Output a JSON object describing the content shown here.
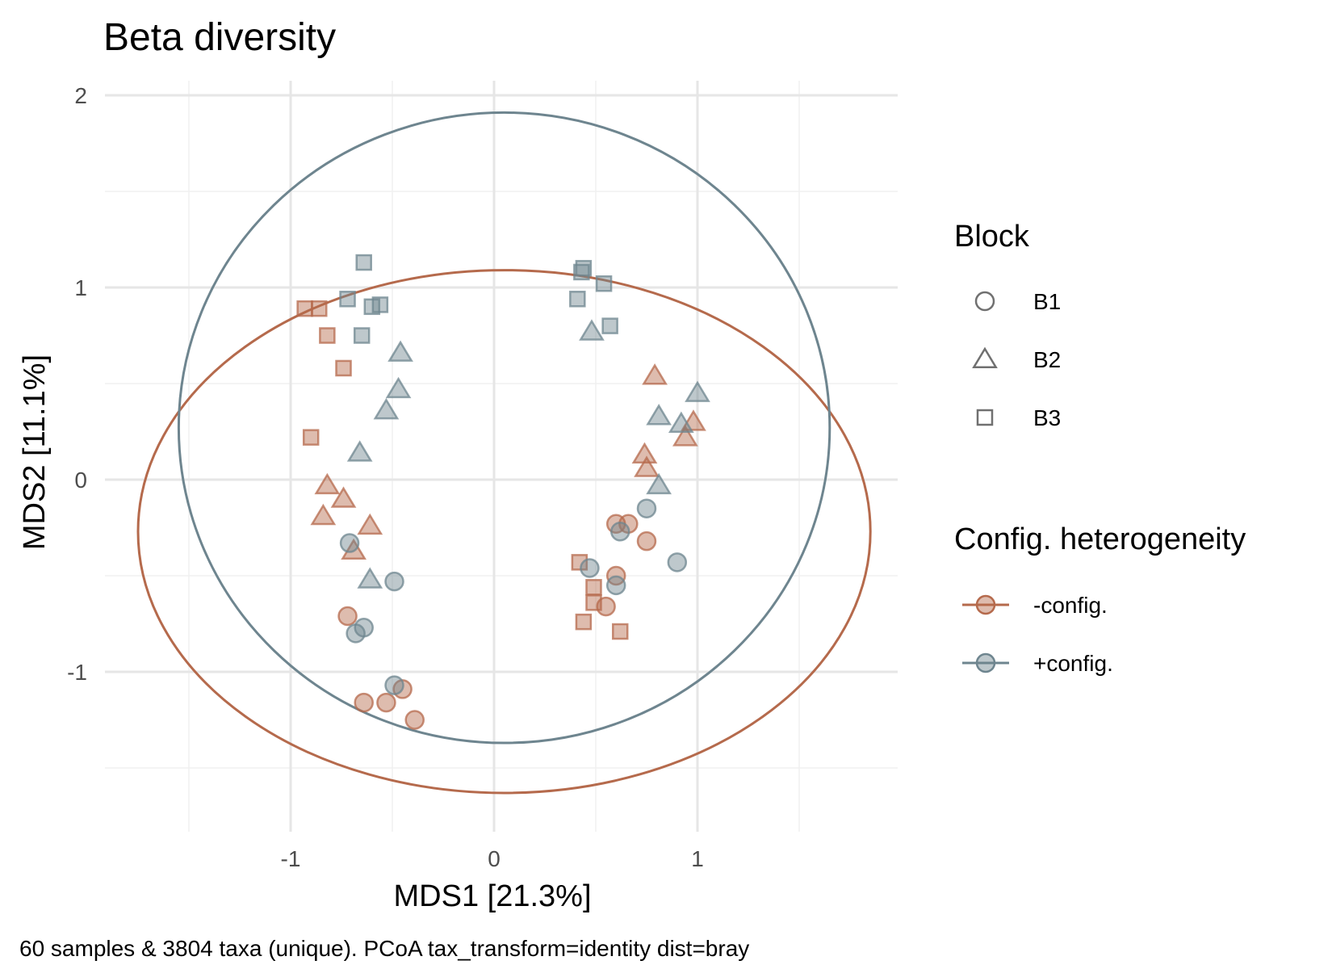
{
  "chart_data": {
    "type": "scatter",
    "title": "Beta diversity",
    "xlabel": "MDS1 [21.3%]",
    "ylabel": "MDS2 [11.1%]",
    "caption": "60 samples & 3804 taxa (unique). PCoA tax_transform=identity dist=bray",
    "xlim": [
      -1.9,
      2.0
    ],
    "ylim": [
      -1.8,
      2.05
    ],
    "x_ticks": [
      -1,
      0,
      1
    ],
    "x_tick_labels": [
      "-1",
      "0",
      "1"
    ],
    "y_ticks": [
      -1,
      0,
      1,
      2
    ],
    "y_tick_labels": [
      "-1",
      "0",
      "1",
      "2"
    ],
    "grid": true,
    "legend_position": "right",
    "shape_legend": {
      "title": "Block",
      "items": [
        {
          "label": "B1",
          "shape": "circle"
        },
        {
          "label": "B2",
          "shape": "triangle"
        },
        {
          "label": "B3",
          "shape": "square"
        }
      ]
    },
    "color_legend": {
      "title": "Config. heterogeneity",
      "items": [
        {
          "label": "-config.",
          "color": "#B56A4C"
        },
        {
          "label": "+config.",
          "color": "#6E858F"
        }
      ]
    },
    "ellipses": [
      {
        "group": "-config.",
        "color": "#B56A4C",
        "cx": 0.05,
        "cy": -0.27,
        "rx": 1.8,
        "ry": 1.36
      },
      {
        "group": "+config.",
        "color": "#6E858F",
        "cx": 0.05,
        "cy": 0.27,
        "rx": 1.6,
        "ry": 1.64
      }
    ],
    "series": [
      {
        "group": "-config.",
        "color": "#B56A4C",
        "points": [
          {
            "x": 0.6,
            "y": -0.23,
            "shape": "circle"
          },
          {
            "x": 0.66,
            "y": -0.23,
            "shape": "circle"
          },
          {
            "x": 0.75,
            "y": -0.32,
            "shape": "circle"
          },
          {
            "x": 0.6,
            "y": -0.5,
            "shape": "circle"
          },
          {
            "x": 0.55,
            "y": -0.66,
            "shape": "circle"
          },
          {
            "x": -0.72,
            "y": -0.71,
            "shape": "circle"
          },
          {
            "x": -0.64,
            "y": -1.16,
            "shape": "circle"
          },
          {
            "x": -0.53,
            "y": -1.16,
            "shape": "circle"
          },
          {
            "x": -0.45,
            "y": -1.09,
            "shape": "circle"
          },
          {
            "x": -0.39,
            "y": -1.25,
            "shape": "circle"
          },
          {
            "x": 0.79,
            "y": 0.54,
            "shape": "triangle"
          },
          {
            "x": 0.98,
            "y": 0.3,
            "shape": "triangle"
          },
          {
            "x": 0.94,
            "y": 0.22,
            "shape": "triangle"
          },
          {
            "x": 0.74,
            "y": 0.13,
            "shape": "triangle"
          },
          {
            "x": 0.75,
            "y": 0.06,
            "shape": "triangle"
          },
          {
            "x": -0.82,
            "y": -0.03,
            "shape": "triangle"
          },
          {
            "x": -0.74,
            "y": -0.1,
            "shape": "triangle"
          },
          {
            "x": -0.84,
            "y": -0.19,
            "shape": "triangle"
          },
          {
            "x": -0.61,
            "y": -0.24,
            "shape": "triangle"
          },
          {
            "x": -0.69,
            "y": -0.37,
            "shape": "triangle"
          },
          {
            "x": -0.93,
            "y": 0.89,
            "shape": "square"
          },
          {
            "x": -0.86,
            "y": 0.89,
            "shape": "square"
          },
          {
            "x": -0.82,
            "y": 0.75,
            "shape": "square"
          },
          {
            "x": -0.74,
            "y": 0.58,
            "shape": "square"
          },
          {
            "x": -0.9,
            "y": 0.22,
            "shape": "square"
          },
          {
            "x": 0.42,
            "y": -0.43,
            "shape": "square"
          },
          {
            "x": 0.49,
            "y": -0.56,
            "shape": "square"
          },
          {
            "x": 0.49,
            "y": -0.64,
            "shape": "square"
          },
          {
            "x": 0.44,
            "y": -0.74,
            "shape": "square"
          },
          {
            "x": 0.62,
            "y": -0.79,
            "shape": "square"
          }
        ]
      },
      {
        "group": "+config.",
        "color": "#6E858F",
        "points": [
          {
            "x": 0.75,
            "y": -0.15,
            "shape": "circle"
          },
          {
            "x": 0.62,
            "y": -0.27,
            "shape": "circle"
          },
          {
            "x": 0.9,
            "y": -0.43,
            "shape": "circle"
          },
          {
            "x": 0.47,
            "y": -0.46,
            "shape": "circle"
          },
          {
            "x": 0.6,
            "y": -0.55,
            "shape": "circle"
          },
          {
            "x": -0.71,
            "y": -0.33,
            "shape": "circle"
          },
          {
            "x": -0.49,
            "y": -0.53,
            "shape": "circle"
          },
          {
            "x": -0.64,
            "y": -0.77,
            "shape": "circle"
          },
          {
            "x": -0.68,
            "y": -0.8,
            "shape": "circle"
          },
          {
            "x": -0.49,
            "y": -1.07,
            "shape": "circle"
          },
          {
            "x": 0.48,
            "y": 0.77,
            "shape": "triangle"
          },
          {
            "x": 1.0,
            "y": 0.45,
            "shape": "triangle"
          },
          {
            "x": 0.81,
            "y": 0.33,
            "shape": "triangle"
          },
          {
            "x": 0.92,
            "y": 0.29,
            "shape": "triangle"
          },
          {
            "x": 0.81,
            "y": -0.03,
            "shape": "triangle"
          },
          {
            "x": -0.46,
            "y": 0.66,
            "shape": "triangle"
          },
          {
            "x": -0.47,
            "y": 0.47,
            "shape": "triangle"
          },
          {
            "x": -0.53,
            "y": 0.36,
            "shape": "triangle"
          },
          {
            "x": -0.66,
            "y": 0.14,
            "shape": "triangle"
          },
          {
            "x": -0.61,
            "y": -0.52,
            "shape": "triangle"
          },
          {
            "x": -0.64,
            "y": 1.13,
            "shape": "square"
          },
          {
            "x": -0.72,
            "y": 0.94,
            "shape": "square"
          },
          {
            "x": -0.6,
            "y": 0.9,
            "shape": "square"
          },
          {
            "x": -0.56,
            "y": 0.91,
            "shape": "square"
          },
          {
            "x": -0.65,
            "y": 0.75,
            "shape": "square"
          },
          {
            "x": 0.44,
            "y": 1.1,
            "shape": "square"
          },
          {
            "x": 0.43,
            "y": 1.08,
            "shape": "square"
          },
          {
            "x": 0.54,
            "y": 1.02,
            "shape": "square"
          },
          {
            "x": 0.41,
            "y": 0.94,
            "shape": "square"
          },
          {
            "x": 0.57,
            "y": 0.8,
            "shape": "square"
          }
        ]
      }
    ]
  }
}
